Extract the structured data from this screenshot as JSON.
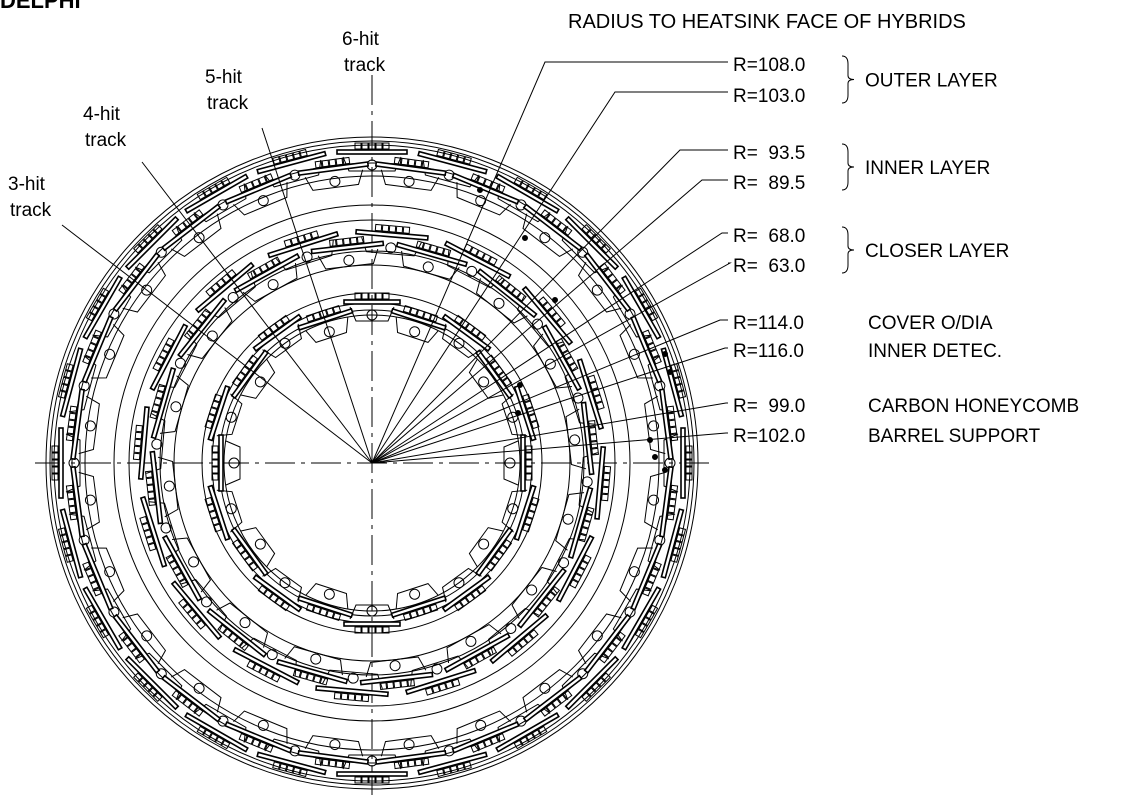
{
  "header": {
    "title": "DELPHI",
    "subtitle": "RADIUS TO HEATSINK FACE OF HYBRIDS"
  },
  "tracks": [
    {
      "line1": "3-hit",
      "line2": "track"
    },
    {
      "line1": "4-hit",
      "line2": "track"
    },
    {
      "line1": "5-hit",
      "line2": "track"
    },
    {
      "line1": "6-hit",
      "line2": "track"
    }
  ],
  "radii": [
    {
      "values": [
        "R=108.0",
        "R=103.0"
      ],
      "label": "OUTER LAYER"
    },
    {
      "values": [
        "R=  93.5",
        "R=  89.5"
      ],
      "label": "INNER LAYER"
    },
    {
      "values": [
        "R=  68.0",
        "R=  63.0"
      ],
      "label": "CLOSER LAYER"
    },
    {
      "values": [
        "R=114.0"
      ],
      "label": "COVER O/DIA"
    },
    {
      "values": [
        "R=116.0"
      ],
      "label": "INNER DETEC."
    },
    {
      "values": [
        "R=  99.0"
      ],
      "label": "CARBON HONEYCOMB"
    },
    {
      "values": [
        "R=102.0"
      ],
      "label": "BARREL SUPPORT"
    }
  ]
}
